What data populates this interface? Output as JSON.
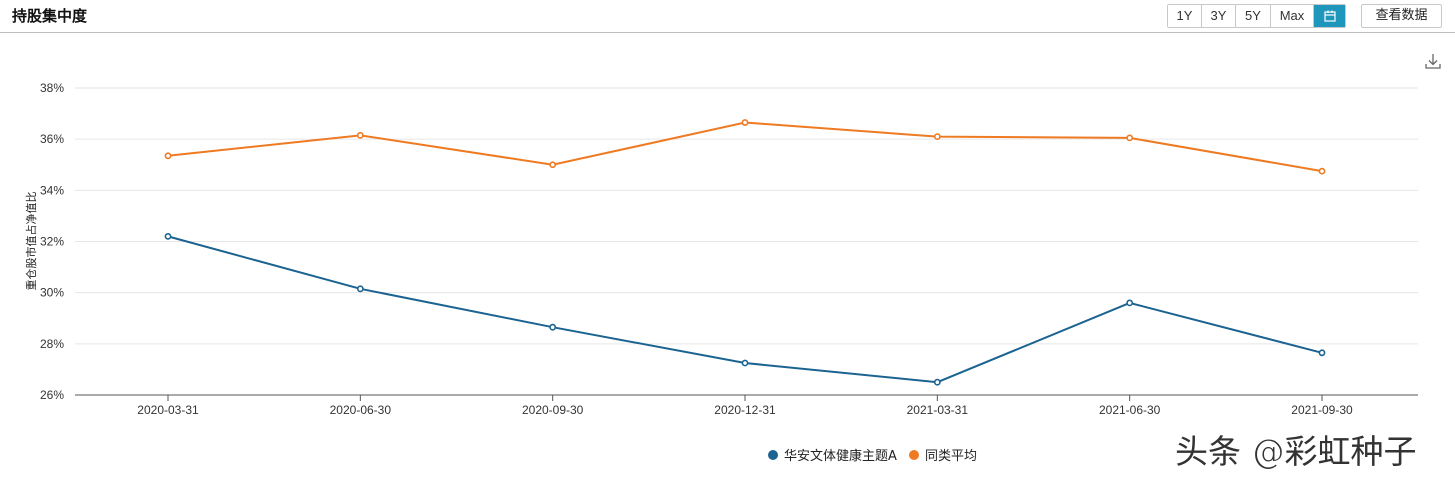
{
  "header": {
    "title": "持股集中度",
    "ranges": [
      "1Y",
      "3Y",
      "5Y",
      "Max"
    ],
    "calendar_icon": "calendar-icon",
    "view_data_label": "查看数据",
    "download_icon": "download-icon"
  },
  "colors": {
    "series_1": "#1b6390",
    "series_2": "#ee7a22",
    "active_button": "#1f97bd"
  },
  "chart_data": {
    "type": "line",
    "ylabel": "重仓股市值占净值比",
    "x": [
      "2020-03-31",
      "2020-06-30",
      "2020-09-30",
      "2020-12-31",
      "2021-03-31",
      "2021-06-30",
      "2021-09-30"
    ],
    "ylim": [
      26,
      38
    ],
    "yticks": [
      "26%",
      "28%",
      "30%",
      "32%",
      "34%",
      "36%",
      "38%"
    ],
    "grid": true,
    "legend_position": "bottom-center",
    "series": [
      {
        "name": "华安文体健康主题A",
        "values": [
          32.2,
          30.15,
          28.65,
          27.25,
          26.5,
          29.6,
          27.65
        ]
      },
      {
        "name": "同类平均",
        "values": [
          35.35,
          36.15,
          35.0,
          36.65,
          36.1,
          36.05,
          34.75
        ]
      }
    ]
  },
  "watermark": "头条 @彩虹种子"
}
